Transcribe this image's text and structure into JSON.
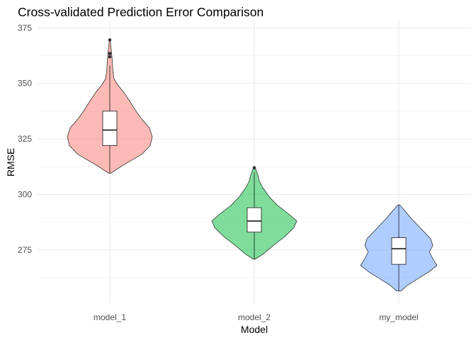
{
  "chart_data": {
    "type": "violin",
    "title": "Cross-validated Prediction Error Comparison",
    "xlabel": "Model",
    "ylabel": "RMSE",
    "ylim": [
      251,
      378
    ],
    "yticks": [
      275,
      300,
      325,
      350,
      375
    ],
    "grid": true,
    "categories": [
      "model_1",
      "model_2",
      "my_model"
    ],
    "series": [
      {
        "category": "model_1",
        "color": "#f8766d",
        "min": 309.5,
        "max": 369.6,
        "box": {
          "q1": 322,
          "median": 329,
          "q3": 337.5,
          "whisker_low": 309.5,
          "whisker_high": 358
        },
        "outliers": [
          369.6,
          363.5,
          362
        ],
        "density": [
          [
            309.5,
            0.02
          ],
          [
            313,
            0.3
          ],
          [
            318,
            0.75
          ],
          [
            322,
            0.95
          ],
          [
            326,
            1.0
          ],
          [
            330,
            0.93
          ],
          [
            334,
            0.75
          ],
          [
            338,
            0.6
          ],
          [
            342,
            0.47
          ],
          [
            346,
            0.33
          ],
          [
            349,
            0.2
          ],
          [
            352,
            0.1
          ],
          [
            356,
            0.07
          ],
          [
            360,
            0.06
          ],
          [
            364,
            0.04
          ],
          [
            369.6,
            0.01
          ]
        ]
      },
      {
        "category": "model_2",
        "color": "#00ba38",
        "min": 270.8,
        "max": 312,
        "box": {
          "q1": 283,
          "median": 288,
          "q3": 294,
          "whisker_low": 270.8,
          "whisker_high": 310
        },
        "outliers": [
          312
        ],
        "density": [
          [
            270.8,
            0.02
          ],
          [
            273,
            0.2
          ],
          [
            277,
            0.45
          ],
          [
            281,
            0.72
          ],
          [
            285,
            0.93
          ],
          [
            288,
            1.0
          ],
          [
            291,
            0.82
          ],
          [
            295,
            0.55
          ],
          [
            299,
            0.35
          ],
          [
            303,
            0.2
          ],
          [
            306,
            0.12
          ],
          [
            309,
            0.08
          ],
          [
            312,
            0.02
          ]
        ]
      },
      {
        "category": "my_model",
        "color": "#619cff",
        "min": 256.5,
        "max": 295.3,
        "box": {
          "q1": 268.5,
          "median": 275.5,
          "q3": 280.5,
          "whisker_low": 256.5,
          "whisker_high": 295.3
        },
        "outliers": [],
        "density": [
          [
            256.5,
            0.05
          ],
          [
            259,
            0.2
          ],
          [
            262,
            0.45
          ],
          [
            265,
            0.7
          ],
          [
            268,
            0.9
          ],
          [
            271,
            0.8
          ],
          [
            274,
            0.72
          ],
          [
            277,
            0.8
          ],
          [
            280,
            0.75
          ],
          [
            283,
            0.6
          ],
          [
            286,
            0.45
          ],
          [
            289,
            0.3
          ],
          [
            292,
            0.17
          ],
          [
            295.3,
            0.02
          ]
        ]
      }
    ]
  }
}
